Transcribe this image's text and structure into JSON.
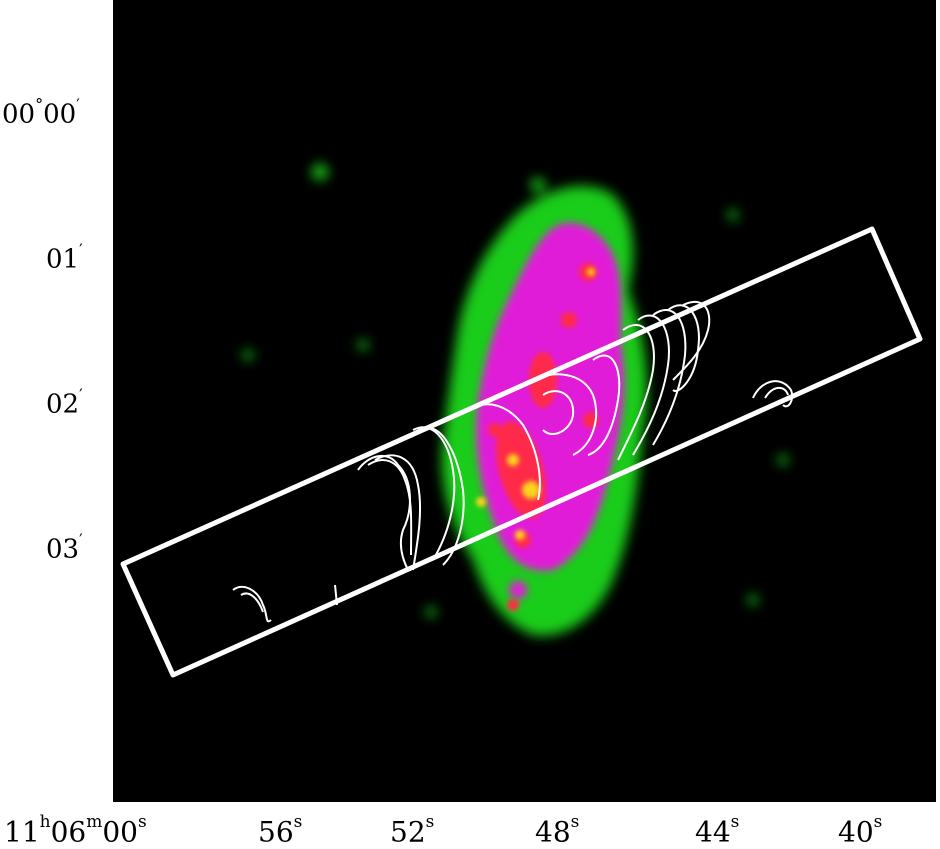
{
  "y_ticks": [
    {
      "deg": "00",
      "deg_sup": "°",
      "min": "00",
      "min_sup": "′"
    },
    {
      "deg": "",
      "deg_sup": "",
      "min": "01",
      "min_sup": "′"
    },
    {
      "deg": "",
      "deg_sup": "",
      "min": "02",
      "min_sup": "′"
    },
    {
      "deg": "",
      "deg_sup": "",
      "min": "03",
      "min_sup": "′"
    }
  ],
  "x_ticks": [
    {
      "h": "11",
      "h_sup": "h",
      "m": "06",
      "m_sup": "m",
      "s": "00",
      "s_sup": "s"
    },
    {
      "s": "56",
      "s_sup": "s"
    },
    {
      "s": "52",
      "s_sup": "s"
    },
    {
      "s": "48",
      "s_sup": "s"
    },
    {
      "s": "44",
      "s_sup": "s"
    },
    {
      "s": "40",
      "s_sup": "s"
    }
  ],
  "colors": {
    "background": "#000000",
    "faint_emission": "#1fd81f",
    "medium_emission": "#e01fd8",
    "bright_emission": "#ff2a4a",
    "peak_emission": "#ffd21f",
    "contour": "#ffffff",
    "slit": "#ffffff"
  }
}
